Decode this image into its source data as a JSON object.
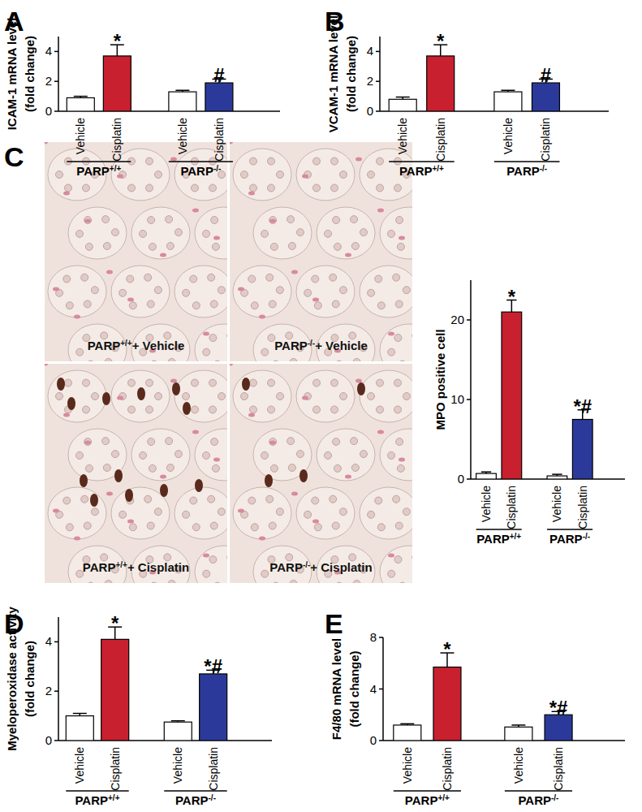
{
  "chart_data": [
    {
      "type": "bar",
      "panel": "A",
      "ylabel_lines": [
        "ICAM-1 mRNA level",
        "(fold change)"
      ],
      "categories": [
        "Vehicle",
        "Cisplatin",
        "Vehicle",
        "Cisplatin"
      ],
      "groups": [
        {
          "base": "PARP",
          "sup": "+/+"
        },
        {
          "base": "PARP",
          "sup": "-/-"
        }
      ],
      "values": [
        0.9,
        3.7,
        1.3,
        1.9
      ],
      "errors": [
        0.1,
        0.75,
        0.1,
        0.25
      ],
      "colors": [
        "#ffffff",
        "#c8202e",
        "#ffffff",
        "#2b3a9a"
      ],
      "ylim": [
        0,
        5
      ],
      "yticks": [
        0,
        2,
        4
      ],
      "annotations": [
        {
          "index": 1,
          "text": "*"
        },
        {
          "index": 3,
          "text": "#"
        }
      ]
    },
    {
      "type": "bar",
      "panel": "B",
      "ylabel_lines": [
        "VCAM-1 mRNA level",
        "(fold change)"
      ],
      "categories": [
        "Vehicle",
        "Cisplatin",
        "Vehicle",
        "Cisplatin"
      ],
      "groups": [
        {
          "base": "PARP",
          "sup": "+/+"
        },
        {
          "base": "PARP",
          "sup": "-/-"
        }
      ],
      "values": [
        0.8,
        3.7,
        1.3,
        1.9
      ],
      "errors": [
        0.15,
        0.75,
        0.1,
        0.25
      ],
      "colors": [
        "#ffffff",
        "#c8202e",
        "#ffffff",
        "#2b3a9a"
      ],
      "ylim": [
        0,
        5
      ],
      "yticks": [
        0,
        2,
        4
      ],
      "annotations": [
        {
          "index": 1,
          "text": "*"
        },
        {
          "index": 3,
          "text": "#"
        }
      ]
    },
    {
      "type": "bar",
      "ylabel_lines": [
        "MPO positive cell"
      ],
      "categories": [
        "Vehicle",
        "Cisplatin",
        "Vehicle",
        "Cisplatin"
      ],
      "groups": [
        {
          "base": "PARP",
          "sup": "+/+"
        },
        {
          "base": "PARP",
          "sup": "-/-"
        }
      ],
      "values": [
        0.7,
        21,
        0.4,
        7.5
      ],
      "errors": [
        0.2,
        1.5,
        0.2,
        1.2
      ],
      "colors": [
        "#ffffff",
        "#c8202e",
        "#ffffff",
        "#2b3a9a"
      ],
      "ylim": [
        0,
        25
      ],
      "yticks": [
        0,
        10,
        20
      ],
      "annotations": [
        {
          "index": 1,
          "text": "*"
        },
        {
          "index": 3,
          "text": "*#"
        }
      ]
    },
    {
      "type": "bar",
      "panel": "D",
      "ylabel_lines": [
        "Myeloperoxidase activity",
        "(fold change)"
      ],
      "categories": [
        "Vehicle",
        "Cisplatin",
        "Vehicle",
        "Cisplatin"
      ],
      "groups": [
        {
          "base": "PARP",
          "sup": "+/+"
        },
        {
          "base": "PARP",
          "sup": "-/-"
        }
      ],
      "values": [
        1.0,
        4.1,
        0.75,
        2.7
      ],
      "errors": [
        0.1,
        0.5,
        0.05,
        0.15
      ],
      "colors": [
        "#ffffff",
        "#c8202e",
        "#ffffff",
        "#2b3a9a"
      ],
      "ylim": [
        0,
        5
      ],
      "yticks": [
        0,
        2,
        4
      ],
      "annotations": [
        {
          "index": 1,
          "text": "*"
        },
        {
          "index": 3,
          "text": "*#"
        }
      ]
    },
    {
      "type": "bar",
      "panel": "E",
      "ylabel_lines": [
        "F4/80 mRNA level",
        "(fold change)"
      ],
      "categories": [
        "Vehicle",
        "Cisplatin",
        "Vehicle",
        "Cisplatin"
      ],
      "groups": [
        {
          "base": "PARP",
          "sup": "+/+"
        },
        {
          "base": "PARP",
          "sup": "-/-"
        }
      ],
      "values": [
        1.2,
        5.7,
        1.05,
        2.0
      ],
      "errors": [
        0.1,
        1.1,
        0.15,
        0.25
      ],
      "colors": [
        "#ffffff",
        "#c8202e",
        "#ffffff",
        "#2b3a9a"
      ],
      "ylim": [
        0,
        8
      ],
      "yticks": [
        0,
        4,
        8
      ],
      "annotations": [
        {
          "index": 1,
          "text": "*"
        },
        {
          "index": 3,
          "text": "*#"
        }
      ]
    }
  ],
  "micrographs": {
    "panel": "C",
    "labels": [
      {
        "base": "PARP",
        "sup": "+/+",
        "rest": "+ Vehicle"
      },
      {
        "base": "PARP",
        "sup": "-/-",
        "rest": "+ Vehicle"
      },
      {
        "base": "PARP",
        "sup": "+/+",
        "rest": "+ Cisplatin"
      },
      {
        "base": "PARP",
        "sup": "-/-",
        "rest": "+ Cisplatin"
      }
    ]
  }
}
